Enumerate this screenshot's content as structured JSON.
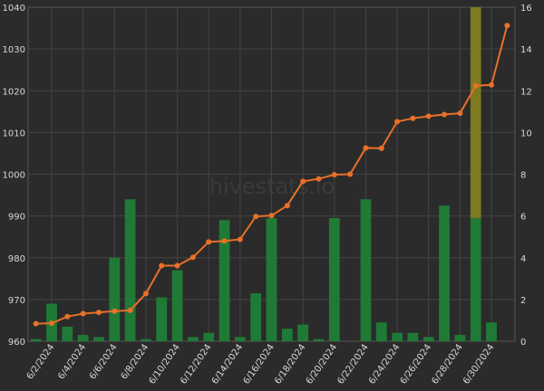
{
  "chart_data": {
    "type": "bar+line",
    "watermark": "hivestats.io",
    "x": [
      "6/1/2024",
      "6/2/2024",
      "6/3/2024",
      "6/4/2024",
      "6/5/2024",
      "6/6/2024",
      "6/7/2024",
      "6/8/2024",
      "6/9/2024",
      "6/10/2024",
      "6/11/2024",
      "6/12/2024",
      "6/13/2024",
      "6/14/2024",
      "6/15/2024",
      "6/16/2024",
      "6/17/2024",
      "6/18/2024",
      "6/19/2024",
      "6/20/2024",
      "6/21/2024",
      "6/22/2024",
      "6/23/2024",
      "6/24/2024",
      "6/25/2024",
      "6/26/2024",
      "6/27/2024",
      "6/28/2024",
      "6/29/2024",
      "6/30/2024",
      "7/1/2024"
    ],
    "x_tick_labels": [
      "6/2/2024",
      "6/4/2024",
      "6/6/2024",
      "6/8/2024",
      "6/10/2024",
      "6/12/2024",
      "6/14/2024",
      "6/16/2024",
      "6/18/2024",
      "6/20/2024",
      "6/22/2024",
      "6/24/2024",
      "6/26/2024",
      "6/28/2024",
      "6/30/2024"
    ],
    "y_left": {
      "ylim": [
        960,
        1040
      ],
      "ticks": [
        960,
        970,
        980,
        990,
        1000,
        1010,
        1020,
        1030,
        1040
      ]
    },
    "y_right": {
      "ylim": [
        0,
        16
      ],
      "ticks": [
        0,
        2,
        4,
        6,
        8,
        10,
        12,
        14,
        16
      ]
    },
    "series": [
      {
        "type": "line",
        "axis": "left",
        "color": "#e8702a",
        "values": [
          964.2,
          964.3,
          965.9,
          966.6,
          966.9,
          967.2,
          967.4,
          971.4,
          978.1,
          978.1,
          980.1,
          983.8,
          984.0,
          984.4,
          989.9,
          990.1,
          992.5,
          998.3,
          998.9,
          999.9,
          1000.0,
          1006.3,
          1006.2,
          1012.6,
          1013.4,
          1013.9,
          1014.3,
          1014.6,
          1021.2,
          1021.4,
          1035.6
        ]
      },
      {
        "type": "bar",
        "axis": "right",
        "color": "#1f7a36",
        "values": [
          0.1,
          1.8,
          0.7,
          0.3,
          0.2,
          4.0,
          6.8,
          0.1,
          2.1,
          3.4,
          0.2,
          0.4,
          5.8,
          0.2,
          2.3,
          5.9,
          0.6,
          0.8,
          0.1,
          5.9,
          0,
          6.8,
          0.9,
          0.4,
          0.4,
          0.2,
          6.5,
          0.3,
          5.9,
          0.9,
          0
        ]
      },
      {
        "type": "bar",
        "axis": "right",
        "color": "#7d7a1f",
        "stacked": true,
        "values": [
          0,
          0,
          0,
          0,
          0,
          0,
          0,
          0,
          0,
          0,
          0,
          0,
          0,
          0,
          0,
          0,
          0,
          0,
          0,
          0,
          0,
          0,
          0,
          0,
          0,
          0,
          0,
          0,
          10.1,
          0,
          0
        ]
      }
    ]
  }
}
